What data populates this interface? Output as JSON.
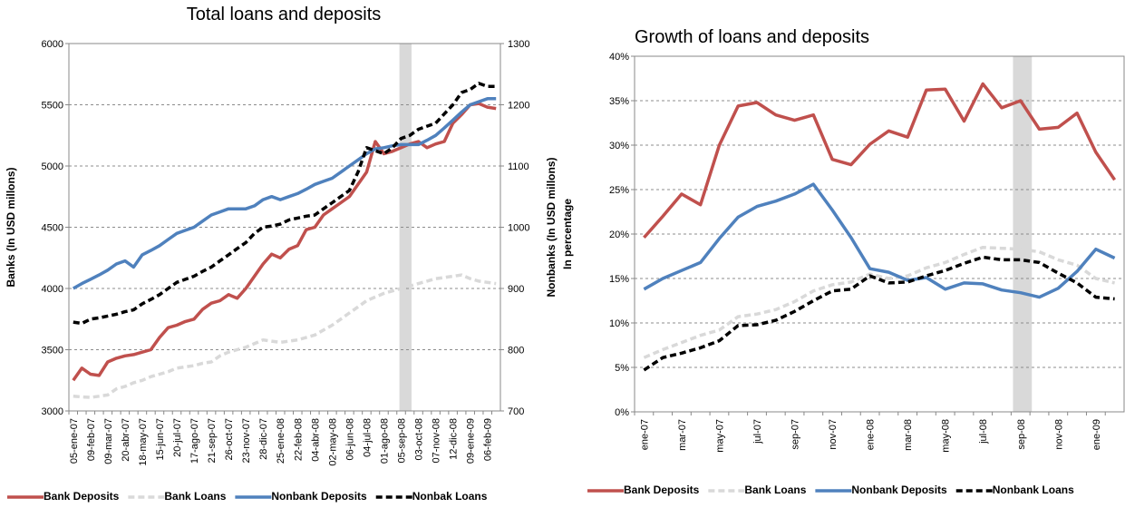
{
  "chart_data": [
    {
      "type": "line",
      "title": "Total loans and deposits",
      "ylabel": "Banks (In USD millons)",
      "y2label": "Nonbanks (In USD millons)",
      "categories": [
        "05-ene-07",
        null,
        "09-feb-07",
        null,
        "09-mar-07",
        null,
        "20-abr-07",
        null,
        "18-may-07",
        null,
        "15-jun-07",
        null,
        "20-jul-07",
        null,
        "17-ago-07",
        null,
        "21-sep-07",
        null,
        "26-oct-07",
        null,
        "23-nov-07",
        null,
        "28-dic-07",
        null,
        "25-ene-08",
        null,
        "22-feb-08",
        null,
        "04-abr-08",
        null,
        "02-may-08",
        null,
        "06-jun-08",
        null,
        "04-jul-08",
        null,
        "01-ago-08",
        null,
        "05-sep-08",
        null,
        "03-oct-08",
        null,
        "07-nov-08",
        null,
        "12-dic-08",
        null,
        "09-ene-09",
        null,
        "06-feb-09",
        null
      ],
      "series": [
        {
          "name": "Bank Deposits",
          "color": "#c0504d",
          "dashed": false,
          "axis": "y",
          "values": [
            3250,
            3350,
            3300,
            3290,
            3400,
            3430,
            3450,
            3460,
            3480,
            3500,
            3600,
            3680,
            3700,
            3730,
            3750,
            3830,
            3880,
            3900,
            3950,
            3920,
            4000,
            4100,
            4200,
            4280,
            4250,
            4320,
            4350,
            4480,
            4500,
            4600,
            4650,
            4700,
            4750,
            4850,
            4950,
            5200,
            5100,
            5120,
            5150,
            5180,
            5200,
            5150,
            5180,
            5200,
            5350,
            5420,
            5500,
            5510,
            5480,
            5470
          ]
        },
        {
          "name": "Bank Loans",
          "color": "#d9d9d9",
          "dashed": true,
          "axis": "y",
          "values": [
            3120,
            3115,
            3110,
            3120,
            3130,
            3180,
            3200,
            3230,
            3250,
            3280,
            3300,
            3320,
            3350,
            3360,
            3370,
            3390,
            3400,
            3450,
            3480,
            3500,
            3520,
            3550,
            3580,
            3570,
            3560,
            3570,
            3580,
            3600,
            3620,
            3660,
            3700,
            3750,
            3800,
            3850,
            3900,
            3930,
            3960,
            3980,
            4000,
            4020,
            4040,
            4060,
            4080,
            4090,
            4100,
            4110,
            4080,
            4060,
            4050,
            4040
          ]
        },
        {
          "name": "Nonbank Deposits",
          "color": "#4f81bd",
          "dashed": false,
          "axis": "y2",
          "values": [
            900,
            908,
            915,
            922,
            930,
            940,
            945,
            935,
            955,
            962,
            970,
            980,
            990,
            995,
            1000,
            1010,
            1020,
            1025,
            1030,
            1030,
            1030,
            1035,
            1045,
            1050,
            1045,
            1050,
            1055,
            1062,
            1070,
            1075,
            1080,
            1090,
            1100,
            1110,
            1120,
            1128,
            1130,
            1133,
            1135,
            1135,
            1135,
            1142,
            1150,
            1162,
            1175,
            1188,
            1200,
            1205,
            1210,
            1210
          ]
        },
        {
          "name": "Nonbak Loans",
          "color": "#000000",
          "dashed": true,
          "axis": "y2",
          "values": [
            845,
            843,
            850,
            852,
            855,
            858,
            862,
            865,
            875,
            882,
            890,
            900,
            910,
            915,
            920,
            928,
            935,
            945,
            955,
            965,
            975,
            990,
            1000,
            1002,
            1005,
            1012,
            1015,
            1018,
            1020,
            1030,
            1040,
            1050,
            1060,
            1090,
            1130,
            1125,
            1120,
            1130,
            1145,
            1150,
            1160,
            1165,
            1170,
            1185,
            1200,
            1220,
            1225,
            1235,
            1230,
            1230
          ]
        }
      ],
      "ylim": [
        3000,
        6000
      ],
      "yticks": [
        3000,
        3500,
        4000,
        4500,
        5000,
        5500,
        6000
      ],
      "y2lim": [
        700,
        1300
      ],
      "y2ticks": [
        700,
        800,
        900,
        1000,
        1100,
        1200,
        1300
      ],
      "highlight": [
        37.8,
        39.2
      ],
      "grid": true
    },
    {
      "type": "line",
      "title": "Growth of loans and deposits",
      "ylabel": "In percentage",
      "categories": [
        "ene-07",
        null,
        "mar-07",
        null,
        "may-07",
        null,
        "jul-07",
        null,
        "sep-07",
        null,
        "nov-07",
        null,
        "ene-08",
        null,
        "mar-08",
        null,
        "may-08",
        null,
        "jul-08",
        null,
        "sep-08",
        null,
        "nov-08",
        null,
        "ene-09",
        null
      ],
      "series": [
        {
          "name": "Bank Deposits",
          "color": "#c0504d",
          "dashed": false,
          "axis": "y",
          "values": [
            19.6,
            22.0,
            24.5,
            23.3,
            30.0,
            34.4,
            34.8,
            33.4,
            32.8,
            33.4,
            28.4,
            27.8,
            30.1,
            31.6,
            30.9,
            36.2,
            36.3,
            32.7,
            36.9,
            34.2,
            35.0,
            31.8,
            32.0,
            33.6,
            29.2,
            26.1
          ]
        },
        {
          "name": "Bank Loans",
          "color": "#d9d9d9",
          "dashed": true,
          "axis": "y",
          "values": [
            6.1,
            7.0,
            7.8,
            8.6,
            9.2,
            10.7,
            11.0,
            11.5,
            12.4,
            13.6,
            14.3,
            14.6,
            15.5,
            15.0,
            15.3,
            16.2,
            16.8,
            17.7,
            18.5,
            18.4,
            18.3,
            18.0,
            17.1,
            16.5,
            15.0,
            14.5
          ]
        },
        {
          "name": "Nonbank Deposits",
          "color": "#4f81bd",
          "dashed": false,
          "axis": "y",
          "values": [
            13.8,
            15.0,
            15.9,
            16.8,
            19.5,
            21.9,
            23.1,
            23.7,
            24.5,
            25.6,
            22.7,
            19.6,
            16.1,
            15.7,
            14.8,
            15.1,
            13.8,
            14.5,
            14.4,
            13.7,
            13.4,
            12.9,
            13.9,
            15.8,
            18.3,
            17.3
          ]
        },
        {
          "name": "Nonbank Loans",
          "color": "#000000",
          "dashed": true,
          "axis": "y",
          "values": [
            4.7,
            6.1,
            6.6,
            7.2,
            8.0,
            9.7,
            9.8,
            10.3,
            11.3,
            12.5,
            13.6,
            13.8,
            15.3,
            14.5,
            14.6,
            15.3,
            15.9,
            16.7,
            17.4,
            17.1,
            17.1,
            16.8,
            15.6,
            14.5,
            12.9,
            12.7
          ]
        }
      ],
      "ylim": [
        0,
        40
      ],
      "yticks": [
        {
          "value": 0,
          "label": "0%"
        },
        {
          "value": 5,
          "label": "5%"
        },
        {
          "value": 10,
          "label": "10%"
        },
        {
          "value": 15,
          "label": "15%"
        },
        {
          "value": 20,
          "label": "20%"
        },
        {
          "value": 25,
          "label": "25%"
        },
        {
          "value": 30,
          "label": "30%"
        },
        {
          "value": 35,
          "label": "35%"
        },
        {
          "value": 40,
          "label": "40%"
        }
      ],
      "highlight": [
        19.6,
        20.6
      ],
      "grid": true
    }
  ]
}
